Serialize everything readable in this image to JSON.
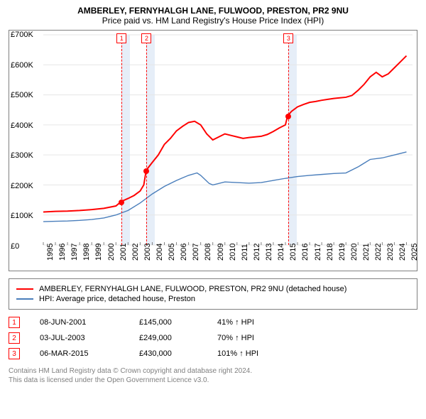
{
  "title": "AMBERLEY, FERNYHALGH LANE, FULWOOD, PRESTON, PR2 9NU",
  "subtitle": "Price paid vs. HM Land Registry's House Price Index (HPI)",
  "chart": {
    "type": "line",
    "background_color": "#ffffff",
    "border_color": "#808080",
    "grid_color": "#e6e6e6",
    "xlim": [
      1995,
      2025.5
    ],
    "ylim": [
      0,
      700000
    ],
    "ytick_step": 100000,
    "yticks": [
      "£0",
      "£100K",
      "£200K",
      "£300K",
      "£400K",
      "£500K",
      "£600K",
      "£700K"
    ],
    "xticks": [
      1995,
      1996,
      1997,
      1998,
      1999,
      2000,
      2001,
      2002,
      2003,
      2004,
      2005,
      2006,
      2007,
      2008,
      2009,
      2010,
      2011,
      2012,
      2013,
      2014,
      2015,
      2016,
      2017,
      2018,
      2019,
      2020,
      2021,
      2022,
      2023,
      2024,
      2025
    ],
    "xlabel_fontsize": 11,
    "ylabel_fontsize": 11,
    "title_fontsize": 12,
    "event_band_color": "#e6eef8",
    "event_line_color": "#ff0000",
    "event_line_dash": "4,3",
    "series": [
      {
        "name": "property",
        "label": "AMBERLEY, FERNYHALGH LANE, FULWOOD, PRESTON, PR2 9NU (detached house)",
        "color": "#ff0000",
        "line_width": 2,
        "data": [
          [
            1995,
            110000
          ],
          [
            1996,
            112000
          ],
          [
            1997,
            113000
          ],
          [
            1998,
            115000
          ],
          [
            1999,
            118000
          ],
          [
            2000,
            122000
          ],
          [
            2001,
            130000
          ],
          [
            2001.44,
            145000
          ],
          [
            2002,
            155000
          ],
          [
            2002.5,
            165000
          ],
          [
            2003,
            180000
          ],
          [
            2003.3,
            200000
          ],
          [
            2003.5,
            249000
          ],
          [
            2004,
            275000
          ],
          [
            2004.5,
            300000
          ],
          [
            2005,
            335000
          ],
          [
            2005.5,
            355000
          ],
          [
            2006,
            380000
          ],
          [
            2006.5,
            395000
          ],
          [
            2007,
            408000
          ],
          [
            2007.5,
            412000
          ],
          [
            2008,
            400000
          ],
          [
            2008.5,
            370000
          ],
          [
            2009,
            350000
          ],
          [
            2009.5,
            360000
          ],
          [
            2010,
            370000
          ],
          [
            2010.5,
            365000
          ],
          [
            2011,
            360000
          ],
          [
            2011.5,
            355000
          ],
          [
            2012,
            358000
          ],
          [
            2012.5,
            360000
          ],
          [
            2013,
            362000
          ],
          [
            2013.5,
            368000
          ],
          [
            2014,
            378000
          ],
          [
            2014.5,
            390000
          ],
          [
            2015,
            400000
          ],
          [
            2015.18,
            430000
          ],
          [
            2015.5,
            445000
          ],
          [
            2016,
            460000
          ],
          [
            2016.5,
            468000
          ],
          [
            2017,
            475000
          ],
          [
            2017.5,
            478000
          ],
          [
            2018,
            482000
          ],
          [
            2018.5,
            485000
          ],
          [
            2019,
            488000
          ],
          [
            2019.5,
            490000
          ],
          [
            2020,
            492000
          ],
          [
            2020.5,
            498000
          ],
          [
            2021,
            515000
          ],
          [
            2021.5,
            535000
          ],
          [
            2022,
            560000
          ],
          [
            2022.5,
            575000
          ],
          [
            2023,
            560000
          ],
          [
            2023.5,
            570000
          ],
          [
            2024,
            590000
          ],
          [
            2024.5,
            610000
          ],
          [
            2025,
            630000
          ]
        ]
      },
      {
        "name": "hpi",
        "label": "HPI: Average price, detached house, Preston",
        "color": "#4a7ebb",
        "line_width": 1.4,
        "data": [
          [
            1995,
            78000
          ],
          [
            1996,
            79000
          ],
          [
            1997,
            80000
          ],
          [
            1998,
            82000
          ],
          [
            1999,
            85000
          ],
          [
            2000,
            90000
          ],
          [
            2001,
            100000
          ],
          [
            2002,
            115000
          ],
          [
            2003,
            140000
          ],
          [
            2004,
            170000
          ],
          [
            2005,
            195000
          ],
          [
            2006,
            215000
          ],
          [
            2007,
            232000
          ],
          [
            2007.7,
            240000
          ],
          [
            2008,
            232000
          ],
          [
            2008.7,
            205000
          ],
          [
            2009,
            200000
          ],
          [
            2010,
            210000
          ],
          [
            2011,
            208000
          ],
          [
            2012,
            206000
          ],
          [
            2013,
            208000
          ],
          [
            2014,
            215000
          ],
          [
            2015,
            222000
          ],
          [
            2016,
            228000
          ],
          [
            2017,
            232000
          ],
          [
            2018,
            235000
          ],
          [
            2019,
            238000
          ],
          [
            2020,
            240000
          ],
          [
            2021,
            260000
          ],
          [
            2022,
            285000
          ],
          [
            2023,
            290000
          ],
          [
            2024,
            300000
          ],
          [
            2025,
            310000
          ]
        ]
      }
    ],
    "events": [
      {
        "n": "1",
        "x": 2001.44,
        "price": 145000,
        "band_width_years": 0.7
      },
      {
        "n": "2",
        "x": 2003.5,
        "price": 249000,
        "band_width_years": 0.7
      },
      {
        "n": "3",
        "x": 2015.18,
        "price": 430000,
        "band_width_years": 0.7
      }
    ]
  },
  "legend": {
    "rows": [
      {
        "color": "#ff0000",
        "label": "AMBERLEY, FERNYHALGH LANE, FULWOOD, PRESTON, PR2 9NU (detached house)"
      },
      {
        "color": "#4a7ebb",
        "label": "HPI: Average price, detached house, Preston"
      }
    ]
  },
  "markers_table": {
    "badge_border": "#ff0000",
    "rows": [
      {
        "n": "1",
        "date": "08-JUN-2001",
        "price": "£145,000",
        "pct": "41% ↑ HPI"
      },
      {
        "n": "2",
        "date": "03-JUL-2003",
        "price": "£249,000",
        "pct": "70% ↑ HPI"
      },
      {
        "n": "3",
        "date": "06-MAR-2015",
        "price": "£430,000",
        "pct": "101% ↑ HPI"
      }
    ]
  },
  "footer": {
    "line1": "Contains HM Land Registry data © Crown copyright and database right 2024.",
    "line2": "This data is licensed under the Open Government Licence v3.0."
  }
}
